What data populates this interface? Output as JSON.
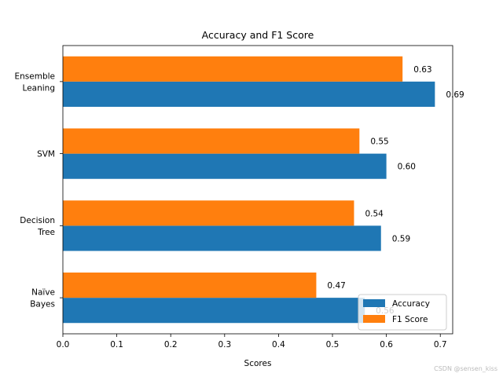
{
  "chart_data": {
    "type": "bar",
    "orientation": "horizontal",
    "title": "Accuracy and F1 Score",
    "xlabel": "Scores",
    "ylabel": "",
    "categories": [
      [
        "Naïve",
        "Bayes"
      ],
      [
        "Decision",
        "Tree"
      ],
      [
        "SVM"
      ],
      [
        "Ensemble",
        "Leaning"
      ]
    ],
    "series": [
      {
        "name": "Accuracy",
        "values": [
          0.56,
          0.59,
          0.6,
          0.69
        ],
        "labels": [
          "0.56",
          "0.59",
          "0.60",
          "0.69"
        ],
        "color": "#1f77b4"
      },
      {
        "name": "F1 Score",
        "values": [
          0.47,
          0.54,
          0.55,
          0.63
        ],
        "labels": [
          "0.47",
          "0.54",
          "0.55",
          "0.63"
        ],
        "color": "#ff7f0e"
      }
    ],
    "xlim": [
      0,
      0.723
    ],
    "xticks": [
      "0.0",
      "0.1",
      "0.2",
      "0.3",
      "0.4",
      "0.5",
      "0.6",
      "0.7"
    ],
    "grid": false,
    "legend_position": "lower-right"
  },
  "watermark": "CSDN @sensen_kiss"
}
